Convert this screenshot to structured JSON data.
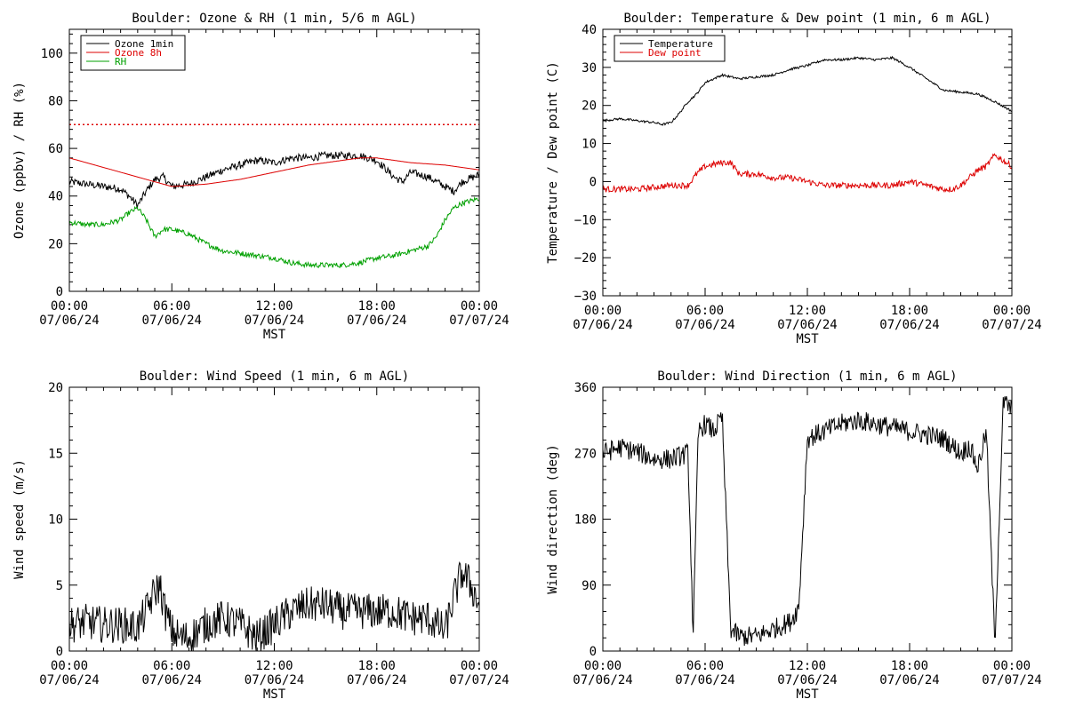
{
  "colors": {
    "black": "#000000",
    "red": "#dd0000",
    "green": "#00a000",
    "background": "#ffffff"
  },
  "chart_data": [
    {
      "type": "line",
      "title": "Boulder: Ozone & RH (1 min, 5/6 m AGL)",
      "xlabel": "MST",
      "ylabel": "Ozone (ppbv) / RH (%)",
      "xlim": [
        0,
        24
      ],
      "ylim": [
        0,
        110
      ],
      "yticks": [
        0,
        20,
        40,
        60,
        80,
        100
      ],
      "yticklabels": [
        "0",
        "20",
        "40",
        "60",
        "80",
        "100"
      ],
      "xticks": [
        0,
        6,
        12,
        18,
        24
      ],
      "xticklabels": [
        [
          "00:00",
          "07/06/24"
        ],
        [
          "06:00",
          "07/06/24"
        ],
        [
          "12:00",
          "07/06/24"
        ],
        [
          "18:00",
          "07/06/24"
        ],
        [
          "00:00",
          "07/07/24"
        ]
      ],
      "legend": {
        "position": "top-left",
        "entries": [
          {
            "label": "Ozone 1min",
            "color": "#000000"
          },
          {
            "label": "Ozone 8h",
            "color": "#dd0000"
          },
          {
            "label": "RH",
            "color": "#00a000"
          }
        ]
      },
      "reference_lines": [
        {
          "y": 70,
          "color": "#dd0000",
          "style": "dotted"
        }
      ],
      "series": [
        {
          "name": "Ozone 1min",
          "color": "#000000",
          "noise": 1.6,
          "x": [
            0,
            1,
            2,
            3,
            3.5,
            4,
            4.5,
            5,
            5.5,
            6,
            7,
            8,
            9,
            10,
            11,
            12,
            13,
            14,
            15,
            16,
            17,
            18,
            19,
            19.5,
            20,
            21,
            22,
            22.5,
            23,
            24
          ],
          "y": [
            46,
            45,
            44,
            43,
            40,
            36,
            42,
            47,
            48,
            44,
            45,
            48,
            51,
            53,
            55,
            54,
            56,
            56,
            57,
            57,
            57,
            55,
            48,
            46,
            50,
            48,
            44,
            42,
            46,
            49
          ]
        },
        {
          "name": "Ozone 8h",
          "color": "#dd0000",
          "noise": 0,
          "x": [
            0,
            2,
            4,
            6,
            8,
            10,
            12,
            14,
            16,
            17,
            18,
            20,
            22,
            24
          ],
          "y": [
            56,
            52,
            48,
            44,
            45,
            47,
            50,
            53,
            55,
            56,
            56,
            54,
            53,
            51
          ]
        },
        {
          "name": "RH",
          "color": "#00a000",
          "noise": 1.1,
          "x": [
            0,
            1,
            2,
            3,
            3.5,
            4,
            4.5,
            5,
            5.5,
            6,
            7,
            8,
            9,
            10,
            11,
            12,
            13,
            14,
            15,
            16,
            17,
            18,
            19,
            20,
            21,
            21.5,
            22,
            22.5,
            23,
            24
          ],
          "y": [
            29,
            28,
            28,
            30,
            33,
            35,
            30,
            23,
            26,
            26,
            24,
            20,
            17,
            16,
            15,
            14,
            12,
            11,
            11,
            11,
            12,
            14,
            15,
            17,
            19,
            23,
            30,
            35,
            37,
            39
          ]
        }
      ]
    },
    {
      "type": "line",
      "title": "Boulder: Temperature & Dew point (1 min, 6 m AGL)",
      "xlabel": "MST",
      "ylabel": "Temperature / Dew point (C)",
      "xlim": [
        0,
        24
      ],
      "ylim": [
        -30,
        40
      ],
      "yticks": [
        -30,
        -20,
        -10,
        0,
        10,
        20,
        30,
        40
      ],
      "yticklabels": [
        "−30",
        "−20",
        "−10",
        "0",
        "10",
        "20",
        "30",
        "40"
      ],
      "xticks": [
        0,
        6,
        12,
        18,
        24
      ],
      "xticklabels": [
        [
          "00:00",
          "07/06/24"
        ],
        [
          "06:00",
          "07/06/24"
        ],
        [
          "12:00",
          "07/06/24"
        ],
        [
          "18:00",
          "07/06/24"
        ],
        [
          "00:00",
          "07/07/24"
        ]
      ],
      "legend": {
        "position": "top-left",
        "entries": [
          {
            "label": "Temperature",
            "color": "#000000"
          },
          {
            "label": "Dew point",
            "color": "#dd0000"
          }
        ]
      },
      "series": [
        {
          "name": "Temperature",
          "color": "#000000",
          "noise": 0.3,
          "x": [
            0,
            1,
            2,
            3,
            3.5,
            4,
            4.5,
            5,
            5.5,
            6,
            7,
            8,
            9,
            10,
            11,
            12,
            13,
            14,
            15,
            16,
            17,
            18,
            19,
            20,
            21,
            22,
            23,
            24
          ],
          "y": [
            16,
            16.5,
            16,
            15.5,
            15,
            15.5,
            18,
            21,
            23,
            26,
            28,
            27,
            27.5,
            28,
            29.5,
            30.5,
            32,
            32,
            32.5,
            32,
            32.5,
            30,
            27,
            24,
            23.5,
            23,
            21,
            18.5
          ]
        },
        {
          "name": "Dew point",
          "color": "#dd0000",
          "noise": 0.8,
          "x": [
            0,
            1,
            2,
            3,
            4,
            5,
            5.5,
            6,
            7,
            7.5,
            8,
            9,
            10,
            11,
            12,
            13,
            14,
            15,
            16,
            17,
            18,
            19,
            20,
            20.5,
            21,
            22,
            22.5,
            23,
            24
          ],
          "y": [
            -2,
            -2,
            -2,
            -1.5,
            -1,
            -1,
            2,
            4,
            5,
            5,
            2,
            2,
            1,
            1,
            0,
            -1,
            -1,
            -1,
            -1,
            -1,
            0,
            -1,
            -2,
            -2,
            -1,
            3,
            4,
            7,
            4
          ]
        }
      ]
    },
    {
      "type": "line",
      "title": "Boulder: Wind Speed (1 min, 6 m AGL)",
      "xlabel": "MST",
      "ylabel": "Wind speed (m/s)",
      "xlim": [
        0,
        24
      ],
      "ylim": [
        0,
        20
      ],
      "yticks": [
        0,
        5,
        10,
        15,
        20
      ],
      "yticklabels": [
        "0",
        "5",
        "10",
        "15",
        "20"
      ],
      "xticks": [
        0,
        6,
        12,
        18,
        24
      ],
      "xticklabels": [
        [
          "00:00",
          "07/06/24"
        ],
        [
          "06:00",
          "07/06/24"
        ],
        [
          "12:00",
          "07/06/24"
        ],
        [
          "18:00",
          "07/06/24"
        ],
        [
          "00:00",
          "07/07/24"
        ]
      ],
      "series": [
        {
          "name": "Wind speed",
          "color": "#000000",
          "noise": 1.4,
          "clamp_min": 0,
          "x": [
            0,
            1,
            2,
            3,
            4,
            4.5,
            5,
            5.3,
            5.6,
            6,
            6.5,
            7,
            8,
            9,
            10,
            11,
            11.5,
            12,
            13,
            14,
            15,
            16,
            17,
            18,
            19,
            20,
            21,
            21.5,
            22,
            22.5,
            23,
            23.5,
            24
          ],
          "y": [
            2,
            2.2,
            2,
            2,
            1.8,
            3,
            4.5,
            5,
            3,
            1.5,
            1,
            1,
            2,
            2.5,
            2,
            1,
            1.5,
            2,
            3,
            3.5,
            3.5,
            3,
            3,
            3,
            3,
            2.5,
            2.5,
            2,
            1.5,
            4,
            6,
            5,
            3.5
          ]
        }
      ]
    },
    {
      "type": "line",
      "title": "Boulder: Wind Direction (1 min, 6 m AGL)",
      "xlabel": "MST",
      "ylabel": "Wind direction (deg)",
      "xlim": [
        0,
        24
      ],
      "ylim": [
        0,
        360
      ],
      "yticks": [
        0,
        90,
        180,
        270,
        360
      ],
      "yticklabels": [
        "0",
        "90",
        "180",
        "270",
        "360"
      ],
      "xticks": [
        0,
        6,
        12,
        18,
        24
      ],
      "xticklabels": [
        [
          "00:00",
          "07/06/24"
        ],
        [
          "06:00",
          "07/06/24"
        ],
        [
          "12:00",
          "07/06/24"
        ],
        [
          "18:00",
          "07/06/24"
        ],
        [
          "00:00",
          "07/07/24"
        ]
      ],
      "series": [
        {
          "name": "Wind direction",
          "color": "#000000",
          "noise": 14,
          "clamp_min": 0,
          "clamp_max": 360,
          "x": [
            0,
            1,
            2,
            3,
            4,
            5,
            5.3,
            5.6,
            6,
            6.5,
            7,
            7.5,
            8,
            9,
            10,
            11,
            11.5,
            12,
            13,
            14,
            15,
            16,
            17,
            18,
            19,
            20,
            21,
            21.5,
            22,
            22.5,
            23,
            23.5,
            24
          ],
          "y": [
            270,
            278,
            272,
            262,
            262,
            270,
            20,
            300,
            310,
            300,
            320,
            30,
            20,
            20,
            30,
            40,
            60,
            290,
            300,
            310,
            315,
            310,
            305,
            300,
            295,
            290,
            270,
            280,
            250,
            300,
            10,
            340,
            330
          ]
        }
      ]
    }
  ]
}
